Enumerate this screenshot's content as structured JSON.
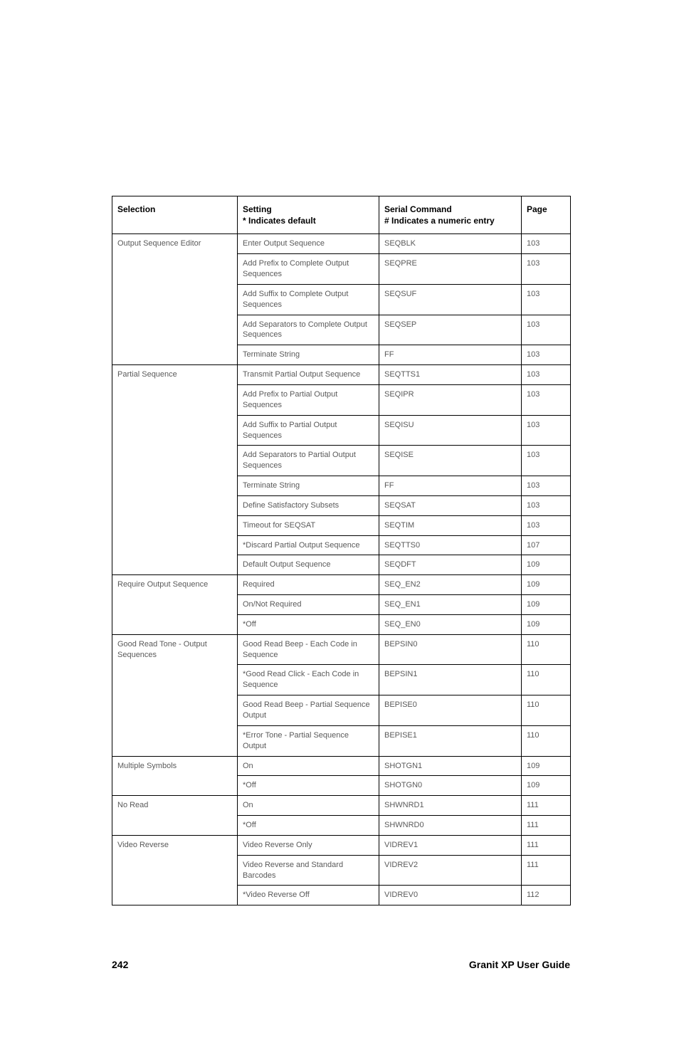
{
  "headers": {
    "selection": "Selection",
    "setting_l1": "Setting",
    "setting_l2": "* Indicates default",
    "command_l1": "Serial Command",
    "command_l2": "# Indicates a numeric entry",
    "page": "Page"
  },
  "groups": [
    {
      "selection": "Output Sequence Editor",
      "rows": [
        {
          "setting": "Enter Output Sequence",
          "cmd": "SEQBLK",
          "page": "103"
        },
        {
          "setting": "Add Prefix to Complete Output Sequences",
          "cmd": "SEQPRE",
          "page": "103"
        },
        {
          "setting": "Add Suffix to Complete Output Sequences",
          "cmd": "SEQSUF",
          "page": "103"
        },
        {
          "setting": "Add Separators to Complete Output Sequences",
          "cmd": "SEQSEP",
          "page": "103"
        },
        {
          "setting": "Terminate String",
          "cmd": "FF",
          "page": "103"
        }
      ]
    },
    {
      "selection": "Partial Sequence",
      "rows": [
        {
          "setting": "Transmit Partial Output Sequence",
          "cmd": "SEQTTS1",
          "page": "103"
        },
        {
          "setting": "Add Prefix to Partial Output Sequences",
          "cmd": "SEQIPR",
          "page": "103"
        },
        {
          "setting": "Add Suffix to Partial Output Sequences",
          "cmd": "SEQISU",
          "page": "103"
        },
        {
          "setting": "Add Separators to Partial Output Sequences",
          "cmd": "SEQISE",
          "page": "103"
        },
        {
          "setting": "Terminate String",
          "cmd": "FF",
          "page": "103"
        },
        {
          "setting": "Define Satisfactory Subsets",
          "cmd": "SEQSAT",
          "page": "103"
        },
        {
          "setting": "Timeout for SEQSAT",
          "cmd": "SEQTIM",
          "page": "103"
        },
        {
          "setting": "*Discard Partial Output Sequence",
          "cmd": "SEQTTS0",
          "page": "107"
        },
        {
          "setting": "Default Output Sequence",
          "cmd": "SEQDFT",
          "page": "109"
        }
      ]
    },
    {
      "selection": "Require Output Sequence",
      "rows": [
        {
          "setting": "Required",
          "cmd": "SEQ_EN2",
          "page": "109"
        },
        {
          "setting": "On/Not Required",
          "cmd": "SEQ_EN1",
          "page": "109"
        },
        {
          "setting": "*Off",
          "cmd": "SEQ_EN0",
          "page": "109"
        }
      ]
    },
    {
      "selection": "Good Read Tone - Output Sequences",
      "rows": [
        {
          "setting": "Good Read Beep - Each Code in Sequence",
          "cmd": "BEPSIN0",
          "page": "110"
        },
        {
          "setting": "*Good Read Click - Each Code in Sequence",
          "cmd": "BEPSIN1",
          "page": "110"
        },
        {
          "setting": "Good Read Beep - Partial Sequence Output",
          "cmd": "BEPISE0",
          "page": "110"
        },
        {
          "setting": "*Error Tone - Partial Sequence Output",
          "cmd": "BEPISE1",
          "page": "110"
        }
      ]
    },
    {
      "selection": "Multiple Symbols",
      "rows": [
        {
          "setting": "On",
          "cmd": "SHOTGN1",
          "page": "109"
        },
        {
          "setting": "*Off",
          "cmd": "SHOTGN0",
          "page": "109"
        }
      ]
    },
    {
      "selection": "No Read",
      "rows": [
        {
          "setting": "On",
          "cmd": "SHWNRD1",
          "page": "111"
        },
        {
          "setting": "*Off",
          "cmd": "SHWNRD0",
          "page": "111"
        }
      ]
    },
    {
      "selection": "Video Reverse",
      "rows": [
        {
          "setting": "Video Reverse Only",
          "cmd": "VIDREV1",
          "page": "111"
        },
        {
          "setting": "Video Reverse and Standard Barcodes",
          "cmd": "VIDREV2",
          "page": "111"
        },
        {
          "setting": "*Video Reverse Off",
          "cmd": "VIDREV0",
          "page": "112"
        }
      ]
    }
  ],
  "footer": {
    "page_number": "242",
    "guide": "Granit XP User Guide"
  }
}
